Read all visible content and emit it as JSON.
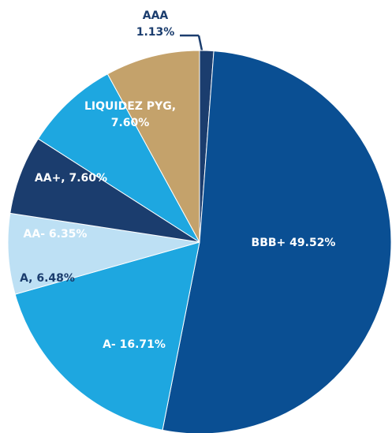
{
  "chart_data": {
    "type": "pie",
    "values": [
      1.13,
      49.52,
      16.71,
      6.48,
      6.35,
      7.6,
      7.6
    ],
    "value_labels": [
      [
        "AAA",
        "1.13%"
      ],
      [
        "BBB+ 49.52%"
      ],
      [
        "A- 16.71%"
      ],
      [
        "A, 6.48%"
      ],
      [
        "AA- 6.35%"
      ],
      [
        "AA+, 7.60%"
      ],
      [
        "LIQUIDEZ PYG,",
        "7.60%"
      ]
    ],
    "colors": [
      "#1b3d6e",
      "#0a4f93",
      "#1ea7e0",
      "#bde0f4",
      "#1b3d6e",
      "#1ea7e0",
      "#c4a26b"
    ],
    "label_colors": [
      "#1b3d6e",
      "#ffffff",
      "#ffffff",
      "#1b3d6e",
      "#ffffff",
      "#ffffff",
      "#ffffff"
    ]
  }
}
